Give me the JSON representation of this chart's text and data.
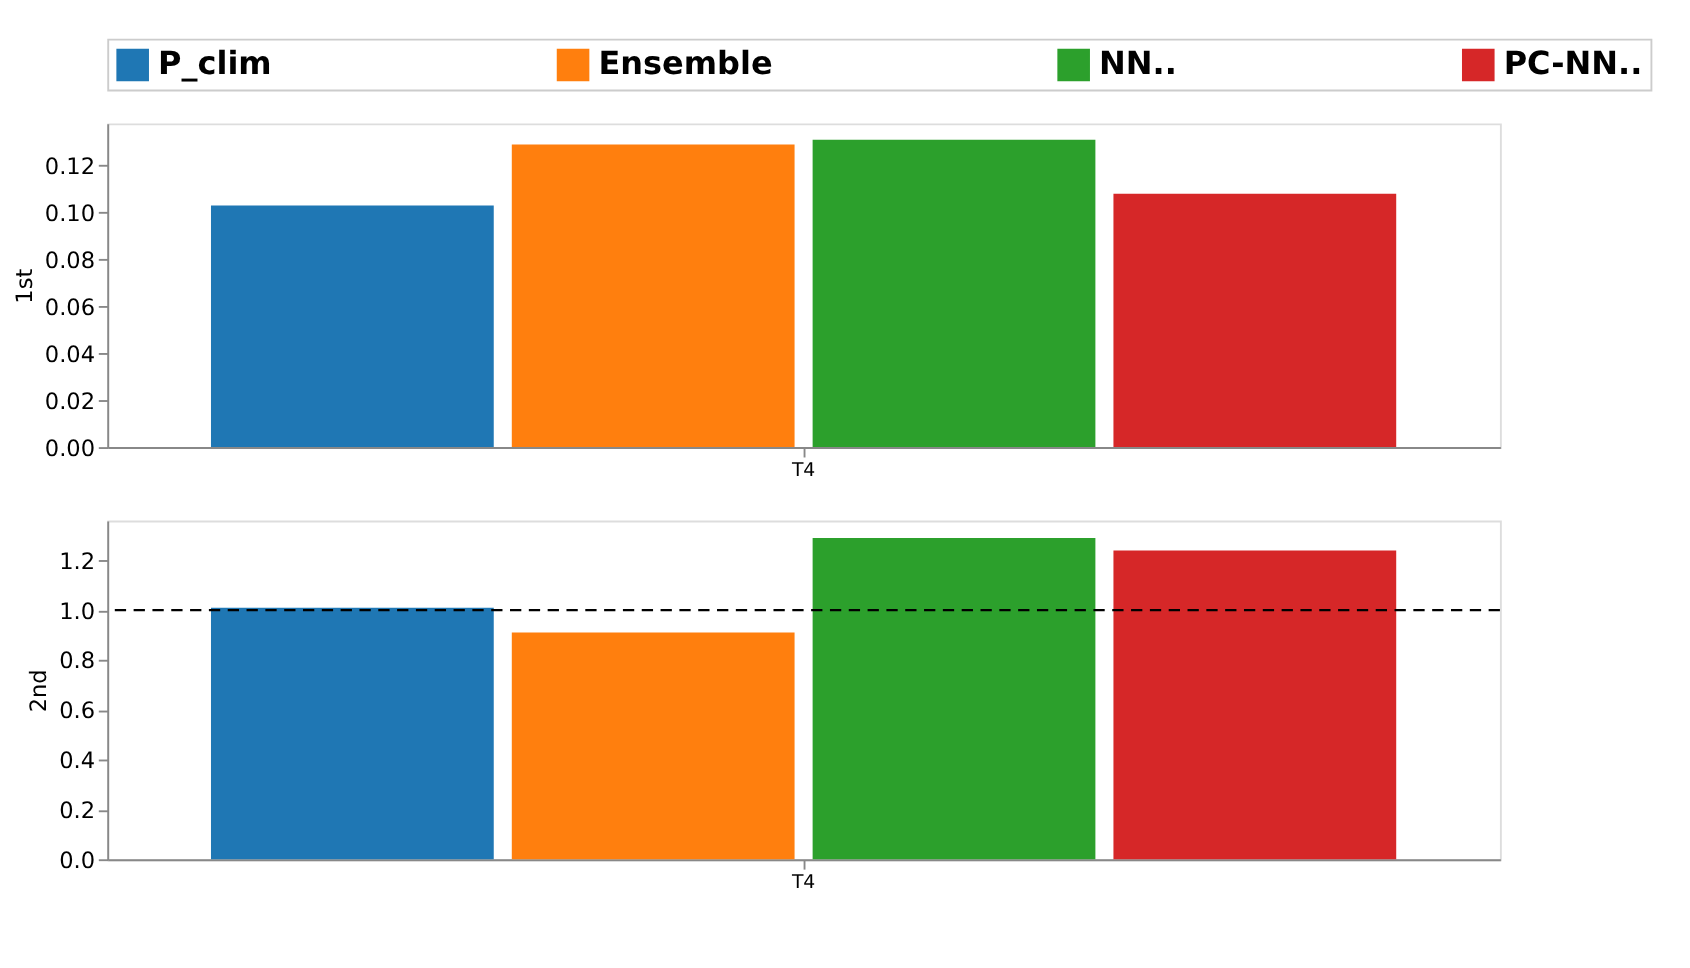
{
  "chart_data": [
    {
      "type": "bar",
      "categories": [
        "T4"
      ],
      "ylabel": "1st",
      "ylim": [
        0,
        0.138
      ],
      "yticks": [
        {
          "value": 0,
          "label": "0.00"
        },
        {
          "value": 0.02,
          "label": "0.02"
        },
        {
          "value": 0.04,
          "label": "0.04"
        },
        {
          "value": 0.06,
          "label": "0.06"
        },
        {
          "value": 0.08,
          "label": "0.08"
        },
        {
          "value": 0.1,
          "label": "0.10"
        },
        {
          "value": 0.12,
          "label": "0.12"
        }
      ],
      "grid": false,
      "legend": "top",
      "series": [
        {
          "name": "P_clim",
          "color": "#1f77b4",
          "values": [
            0.103
          ]
        },
        {
          "name": "Ensemble",
          "color": "#ff7f0e",
          "values": [
            0.129
          ]
        },
        {
          "name": "NN..",
          "color": "#2ca02c",
          "values": [
            0.131
          ]
        },
        {
          "name": "PC-NN..",
          "color": "#d62728",
          "values": [
            0.108
          ]
        }
      ]
    },
    {
      "type": "bar",
      "categories": [
        "T4"
      ],
      "ylabel": "2nd",
      "ylim": [
        0,
        1.36
      ],
      "yticks": [
        {
          "value": 0,
          "label": "0.0"
        },
        {
          "value": 0.2,
          "label": "0.2"
        },
        {
          "value": 0.4,
          "label": "0.4"
        },
        {
          "value": 0.6,
          "label": "0.6"
        },
        {
          "value": 0.8,
          "label": "0.8"
        },
        {
          "value": 1,
          "label": "1.0"
        },
        {
          "value": 1.2,
          "label": "1.2"
        }
      ],
      "grid": false,
      "ref_lines": [
        {
          "axis": "y",
          "value": 1.0,
          "line_style": "dashed",
          "color": "#000000"
        }
      ],
      "series": [
        {
          "color": "#1f77b4",
          "values": [
            1.01
          ]
        },
        {
          "color": "#ff7f0e",
          "values": [
            0.91
          ]
        },
        {
          "color": "#2ca02c",
          "values": [
            1.29
          ]
        },
        {
          "color": "#d62728",
          "values": [
            1.24
          ]
        }
      ]
    }
  ]
}
